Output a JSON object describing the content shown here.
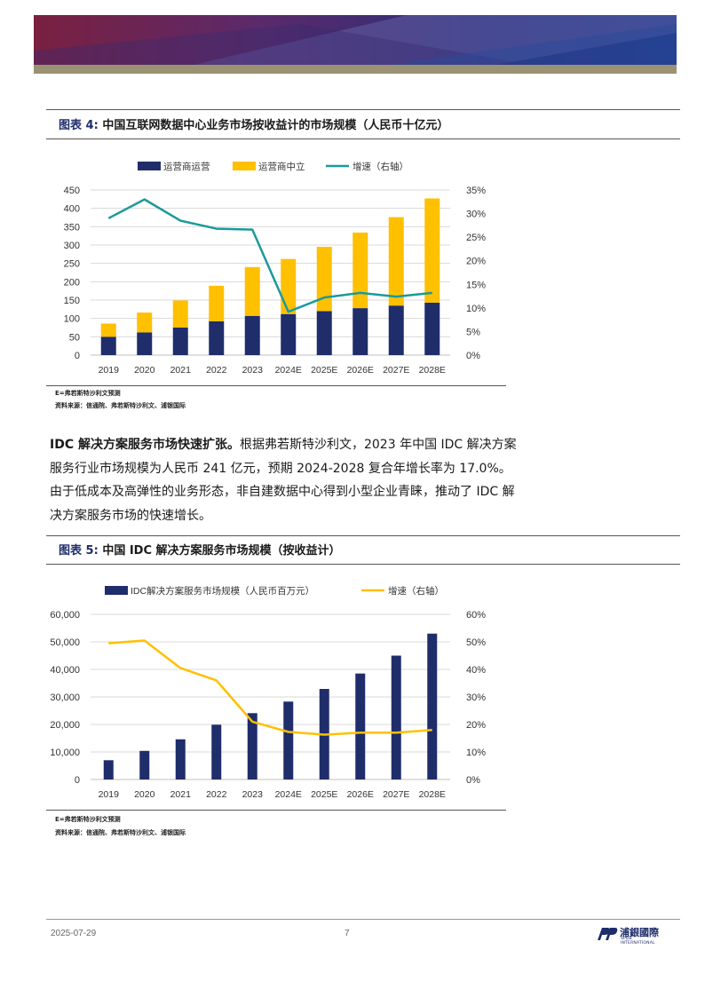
{
  "figure4": {
    "label": "图表 4:",
    "title": "中国互联网数据中心业务市场按收益计的市场规模（人民币十亿元）",
    "note": "E=弗若斯特沙利文预测",
    "source": "资料来源：信通院、弗若斯特沙利文、浦银国际"
  },
  "figure5": {
    "label": "图表 5:",
    "title": "中国 IDC 解决方案服务市场规模（按收益计）",
    "note": "E=弗若斯特沙利文预测",
    "source": "资料来源：信通院、弗若斯特沙利文、浦银国际"
  },
  "paragraph": {
    "lead": "IDC 解决方案服务市场快速扩张。",
    "body": "根据弗若斯特沙利文，2023 年中国 IDC 解决方案服务行业市场规模为人民币 241 亿元，预期 2024-2028 复合年增长率为 17.0%。由于低成本及高弹性的业务形态，非自建数据中心得到小型企业青睐，推动了 IDC 解决方案服务市场的快速增长。"
  },
  "footer": {
    "date": "2025-07-29",
    "page": "7",
    "logo_cn": "浦銀國際",
    "logo_en": "SPDB INTERNATIONAL"
  },
  "colors": {
    "navy": "#1f2d6b",
    "gold": "#ffc000",
    "teal": "#1a9a9a",
    "grid": "#d9d9d9"
  },
  "chart_data": [
    {
      "type": "bar",
      "stacked": true,
      "categories": [
        "2019",
        "2020",
        "2021",
        "2022",
        "2023",
        "2024E",
        "2025E",
        "2026E",
        "2027E",
        "2028E"
      ],
      "series": [
        {
          "name": "运营商运营",
          "values": [
            50,
            62,
            75,
            92,
            107,
            112,
            120,
            128,
            135,
            143
          ],
          "color": "#1f2d6b"
        },
        {
          "name": "运营商中立",
          "values": [
            36,
            54,
            74,
            97,
            133,
            150,
            175,
            206,
            241,
            284
          ],
          "color": "#ffc000"
        }
      ],
      "line": {
        "name": "增速（右轴）",
        "values": [
          29.0,
          33.0,
          28.5,
          26.8,
          26.6,
          9.2,
          12.2,
          13.2,
          12.4,
          13.2
        ],
        "color": "#1a9a9a"
      },
      "ylim": [
        0,
        450
      ],
      "yticks": [
        "0",
        "50",
        "100",
        "150",
        "200",
        "250",
        "300",
        "350",
        "400",
        "450"
      ],
      "y2lim": [
        0,
        35
      ],
      "y2ticks": [
        "0%",
        "5%",
        "10%",
        "15%",
        "20%",
        "25%",
        "30%",
        "35%"
      ],
      "legend": [
        "运营商运营",
        "运营商中立",
        "增速（右轴）"
      ]
    },
    {
      "type": "bar",
      "categories": [
        "2019",
        "2020",
        "2021",
        "2022",
        "2023",
        "2024E",
        "2025E",
        "2026E",
        "2027E",
        "2028E"
      ],
      "series": [
        {
          "name": "IDC解决方案服务市场规模（人民币百万元）",
          "values": [
            7000,
            10400,
            14600,
            19900,
            24100,
            28300,
            32900,
            38500,
            45000,
            53000
          ],
          "color": "#1f2d6b"
        }
      ],
      "line": {
        "name": "增速（右轴）",
        "values": [
          49.5,
          50.5,
          40.5,
          36.0,
          21.0,
          17.3,
          16.3,
          17.0,
          17.0,
          18.0
        ],
        "color": "#ffc000"
      },
      "ylim": [
        0,
        60000
      ],
      "yticks": [
        "0",
        "10,000",
        "20,000",
        "30,000",
        "40,000",
        "50,000",
        "60,000"
      ],
      "y2lim": [
        0,
        60
      ],
      "y2ticks": [
        "0%",
        "10%",
        "20%",
        "30%",
        "40%",
        "50%",
        "60%"
      ],
      "legend": [
        "IDC解决方案服务市场规模（人民币百万元）",
        "增速（右轴）"
      ]
    }
  ]
}
